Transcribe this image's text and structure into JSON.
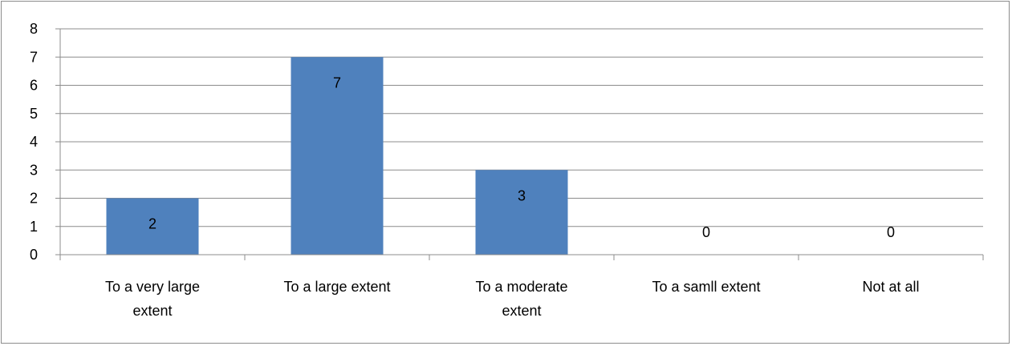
{
  "chart_data": {
    "type": "bar",
    "categories": [
      [
        "To a very large",
        "extent"
      ],
      [
        "To a large extent"
      ],
      [
        "To a moderate",
        "extent"
      ],
      [
        "To a samll extent"
      ],
      [
        "Not at all"
      ]
    ],
    "values": [
      2,
      7,
      3,
      0,
      0
    ],
    "data_labels": [
      "2",
      "7",
      "3",
      "0",
      "0"
    ],
    "ylim": [
      0,
      8
    ],
    "yticks": [
      "0",
      "1",
      "2",
      "3",
      "4",
      "5",
      "6",
      "7",
      "8"
    ],
    "grid": true,
    "legend": "none",
    "bar_color": "#4f81bd",
    "grid_color": "#8c8c8c"
  }
}
